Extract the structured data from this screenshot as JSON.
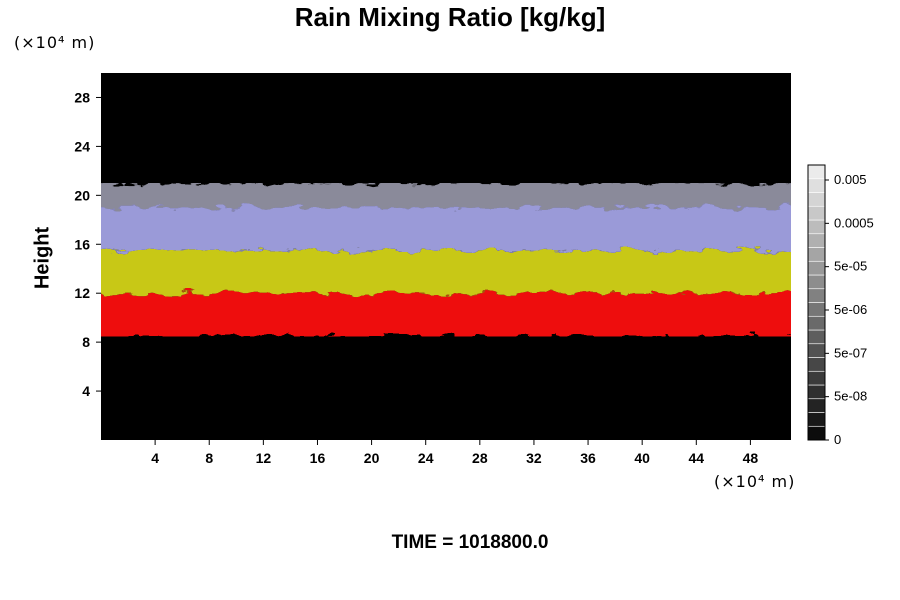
{
  "chart_data": {
    "type": "heatmap",
    "title": "Rain Mixing Ratio [kg/kg]",
    "ylabel": "Height",
    "x_unit": "(×10⁴ m)",
    "y_unit": "(×10⁴ m)",
    "x_ticks": [
      4,
      8,
      12,
      16,
      20,
      24,
      28,
      32,
      36,
      40,
      44,
      48
    ],
    "y_ticks": [
      4,
      8,
      12,
      16,
      20,
      24,
      28
    ],
    "xlim": [
      0,
      51
    ],
    "ylim": [
      0,
      30
    ],
    "colorbar": {
      "labels": [
        "0.005",
        "0.0005",
        "5e-05",
        "5e-06",
        "5e-07",
        "5e-08",
        "0"
      ],
      "n_levels": 20
    },
    "layers": [
      {
        "y_range": [
          8.5,
          12
        ],
        "color": "#ee1111"
      },
      {
        "y_range": [
          12,
          15.5
        ],
        "color": "#c8c814"
      },
      {
        "y_range": [
          15.5,
          19
        ],
        "color": "#9a9ad8"
      },
      {
        "y_range": [
          19,
          21
        ],
        "color": "#8a8a9a"
      }
    ],
    "colors": {
      "background": "#000000"
    },
    "footer": "TIME = 1018800.0"
  }
}
